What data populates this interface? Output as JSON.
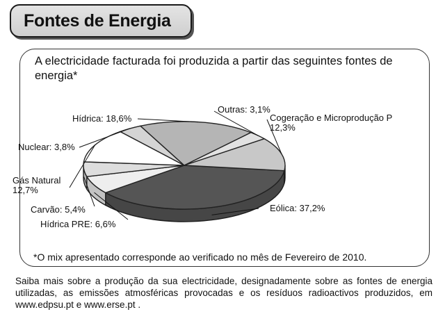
{
  "header": {
    "title": "Fontes de Energia"
  },
  "intro": "A electricidade facturada foi produzida a partir das seguintes fontes de energia*",
  "chart_data": {
    "type": "pie",
    "slices": [
      {
        "label": "Eólica",
        "value": 37.2,
        "value_text": "37,2%",
        "color": "#555555"
      },
      {
        "label": "Hídrica PRE",
        "value": 6.6,
        "value_text": "6,6%",
        "color": "#eeeeee"
      },
      {
        "label": "Carvão",
        "value": 5.4,
        "value_text": "5,4%",
        "color": "#dddddd"
      },
      {
        "label": "Gás Natural",
        "value": 12.7,
        "value_text": "12,7%",
        "color": "#ffffff"
      },
      {
        "label": "Nuclear",
        "value": 3.8,
        "value_text": "3,8%",
        "color": "#d4d4d4"
      },
      {
        "label": "Hídrica",
        "value": 18.6,
        "value_text": "18,6%",
        "color": "#b5b5b5"
      },
      {
        "label": "Outras",
        "value": 3.1,
        "value_text": "3,1%",
        "color": "#e2e2e2"
      },
      {
        "label": "Cogeração e Microprodução P",
        "value": 12.3,
        "value_text": "12,3%",
        "color": "#c8c8c8"
      }
    ]
  },
  "footnote": "*O mix apresentado corresponde ao verificado no mês de Fevereiro de 2010.",
  "footer": "Saiba mais sobre a produção da sua electricidade, designadamente sobre as fontes de energia utilizadas, as emissões atmosféricas provocadas e os resíduos radioactivos produzidos, em www.edpsu.pt e www.erse.pt ."
}
